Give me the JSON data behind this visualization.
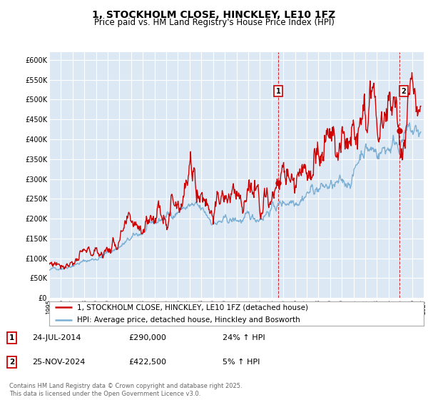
{
  "title": "1, STOCKHOLM CLOSE, HINCKLEY, LE10 1FZ",
  "subtitle": "Price paid vs. HM Land Registry's House Price Index (HPI)",
  "legend_line1": "1, STOCKHOLM CLOSE, HINCKLEY, LE10 1FZ (detached house)",
  "legend_line2": "HPI: Average price, detached house, Hinckley and Bosworth",
  "annotation1_date": "24-JUL-2014",
  "annotation1_price": "£290,000",
  "annotation1_hpi": "24% ↑ HPI",
  "annotation1_year": 2014.56,
  "annotation1_value": 290000,
  "annotation2_date": "25-NOV-2024",
  "annotation2_price": "£422,500",
  "annotation2_hpi": "5% ↑ HPI",
  "annotation2_year": 2024.9,
  "annotation2_value": 422500,
  "footer": "Contains HM Land Registry data © Crown copyright and database right 2025.\nThis data is licensed under the Open Government Licence v3.0.",
  "ylim": [
    0,
    620000
  ],
  "xlim_start": 1995.0,
  "xlim_end": 2027.0,
  "bg_color": "#dce9f5",
  "grid_color": "#ffffff",
  "red_color": "#cc0000",
  "blue_color": "#7bafd4"
}
